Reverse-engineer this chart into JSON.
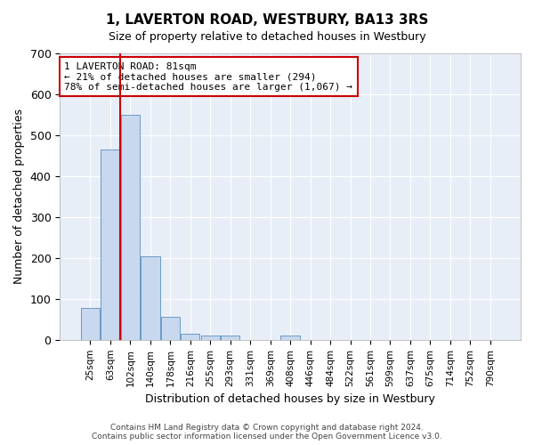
{
  "title": "1, LAVERTON ROAD, WESTBURY, BA13 3RS",
  "subtitle": "Size of property relative to detached houses in Westbury",
  "xlabel": "Distribution of detached houses by size in Westbury",
  "ylabel": "Number of detached properties",
  "bar_color": "#c8d8ee",
  "bar_edge_color": "#5a8fc0",
  "background_color": "#e8eef8",
  "grid_color": "#ffffff",
  "categories": [
    "25sqm",
    "63sqm",
    "102sqm",
    "140sqm",
    "178sqm",
    "216sqm",
    "255sqm",
    "293sqm",
    "331sqm",
    "369sqm",
    "408sqm",
    "446sqm",
    "484sqm",
    "522sqm",
    "561sqm",
    "599sqm",
    "637sqm",
    "675sqm",
    "714sqm",
    "752sqm",
    "790sqm"
  ],
  "values": [
    78,
    465,
    550,
    204,
    57,
    15,
    10,
    10,
    0,
    0,
    10,
    0,
    0,
    0,
    0,
    0,
    0,
    0,
    0,
    0,
    0
  ],
  "ylim": [
    0,
    700
  ],
  "yticks": [
    0,
    100,
    200,
    300,
    400,
    500,
    600,
    700
  ],
  "red_line_x": 1.47,
  "annotation_text": "1 LAVERTON ROAD: 81sqm\n← 21% of detached houses are smaller (294)\n78% of semi-detached houses are larger (1,067) →",
  "annotation_box_color": "#ffffff",
  "annotation_box_edge": "#cc0000",
  "red_line_color": "#cc0000",
  "footer_text": "Contains HM Land Registry data © Crown copyright and database right 2024.\nContains public sector information licensed under the Open Government Licence v3.0.",
  "figsize": [
    6.0,
    5.0
  ],
  "dpi": 100
}
